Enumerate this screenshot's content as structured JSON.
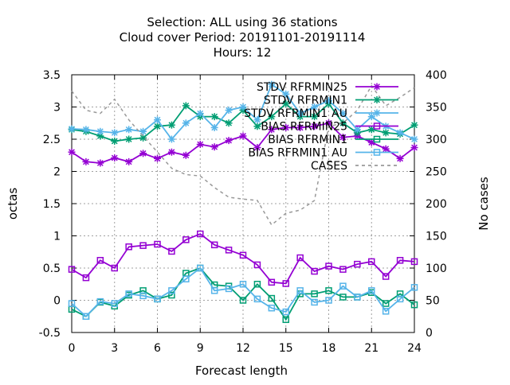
{
  "chart_data": {
    "type": "line",
    "title_lines": [
      "Selection: ALL using    36 stations",
      "Cloud cover   Period: 20191101-20191114",
      "Hours:  12"
    ],
    "xlabel": "Forecast length",
    "ylabel": "octas",
    "y2label": "No cases",
    "xlim": [
      0,
      24
    ],
    "ylim": [
      -0.5,
      3.5
    ],
    "y2lim": [
      0,
      400
    ],
    "xticks": [
      0,
      3,
      6,
      9,
      12,
      15,
      18,
      21,
      24
    ],
    "yticks": [
      -0.5,
      0,
      0.5,
      1,
      1.5,
      2,
      2.5,
      3,
      3.5
    ],
    "y2ticks": [
      0,
      50,
      100,
      150,
      200,
      250,
      300,
      350,
      400
    ],
    "grid": true,
    "legend_position": "top-right",
    "x": [
      0,
      1,
      2,
      3,
      4,
      5,
      6,
      7,
      8,
      9,
      10,
      11,
      12,
      13,
      14,
      15,
      16,
      17,
      18,
      19,
      20,
      21,
      22,
      23,
      24
    ],
    "series": [
      {
        "name": "STDV RFRMIN25",
        "color": "#9400d3",
        "marker": "star",
        "axis": "y",
        "dash": false,
        "values": [
          2.3,
          2.15,
          2.13,
          2.21,
          2.15,
          2.28,
          2.2,
          2.3,
          2.25,
          2.42,
          2.38,
          2.48,
          2.55,
          2.37,
          2.65,
          2.68,
          2.68,
          2.7,
          2.75,
          2.53,
          2.55,
          2.45,
          2.35,
          2.2,
          2.37
        ]
      },
      {
        "name": "STDV RFRMIN1",
        "color": "#009e73",
        "marker": "star",
        "axis": "y",
        "dash": false,
        "values": [
          2.65,
          2.62,
          2.55,
          2.47,
          2.5,
          2.52,
          2.7,
          2.72,
          3.02,
          2.85,
          2.85,
          2.75,
          2.95,
          2.7,
          2.85,
          3.05,
          2.85,
          2.85,
          3.05,
          2.75,
          2.6,
          2.65,
          2.6,
          2.58,
          2.72
        ]
      },
      {
        "name": "STDV RFRMIN1_AU",
        "color": "#56b4e9",
        "marker": "star",
        "axis": "y",
        "dash": false,
        "values": [
          2.66,
          2.65,
          2.62,
          2.6,
          2.65,
          2.62,
          2.8,
          2.5,
          2.75,
          2.9,
          2.68,
          2.95,
          3.0,
          2.8,
          3.35,
          3.2,
          2.9,
          3.0,
          3.1,
          2.9,
          2.65,
          2.85,
          2.7,
          2.6,
          2.5
        ]
      },
      {
        "name": "BIAS RFRMIN25",
        "color": "#9400d3",
        "marker": "square",
        "axis": "y",
        "dash": false,
        "values": [
          0.48,
          0.35,
          0.62,
          0.5,
          0.83,
          0.85,
          0.87,
          0.76,
          0.94,
          1.03,
          0.86,
          0.78,
          0.7,
          0.55,
          0.28,
          0.26,
          0.66,
          0.45,
          0.53,
          0.48,
          0.56,
          0.6,
          0.37,
          0.62,
          0.6
        ]
      },
      {
        "name": "BIAS RFRMIN1",
        "color": "#009e73",
        "marker": "square",
        "axis": "y",
        "dash": false,
        "values": [
          -0.14,
          -0.25,
          -0.03,
          -0.09,
          0.08,
          0.15,
          0.02,
          0.08,
          0.42,
          0.5,
          0.24,
          0.22,
          0.0,
          0.25,
          0.03,
          -0.3,
          0.1,
          0.1,
          0.15,
          0.05,
          0.05,
          0.12,
          -0.05,
          0.1,
          -0.07
        ]
      },
      {
        "name": "BIAS RFRMIN1_AU",
        "color": "#56b4e9",
        "marker": "square",
        "axis": "y",
        "dash": false,
        "values": [
          -0.05,
          -0.25,
          -0.02,
          -0.05,
          0.1,
          0.07,
          0.02,
          0.15,
          0.33,
          0.5,
          0.15,
          0.18,
          0.25,
          0.02,
          -0.12,
          -0.18,
          0.15,
          -0.03,
          0.0,
          0.22,
          0.05,
          0.15,
          -0.17,
          0.02,
          0.2
        ]
      },
      {
        "name": "CASES",
        "color": "#999999",
        "marker": "none",
        "axis": "y2",
        "dash": true,
        "values": [
          375,
          345,
          340,
          362,
          330,
          305,
          280,
          255,
          245,
          243,
          225,
          210,
          207,
          205,
          167,
          185,
          190,
          205,
          320,
          325,
          345,
          383,
          352,
          365,
          380
        ]
      }
    ],
    "legend": [
      {
        "label": "STDV RFRMIN25",
        "sub": ""
      },
      {
        "label": "STDV RFRMIN1",
        "sub": ""
      },
      {
        "label": "STDV RFRMIN1",
        "sub": "AU"
      },
      {
        "label": "BIAS RFRMIN25",
        "sub": ""
      },
      {
        "label": "BIAS RFRMIN1",
        "sub": ""
      },
      {
        "label": "BIAS RFRMIN1",
        "sub": "AU"
      },
      {
        "label": "CASES",
        "sub": ""
      }
    ]
  }
}
